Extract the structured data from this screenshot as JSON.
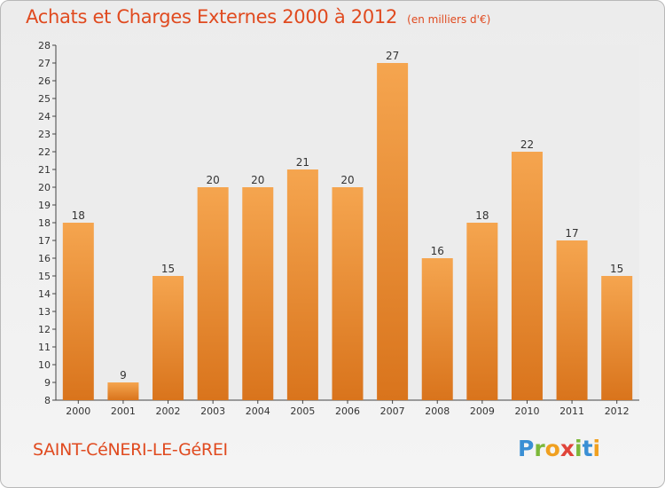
{
  "title": "Achats et Charges Externes 2000 à 2012",
  "unit": "(en milliers d'€)",
  "place": "SAINT-CéNERI-LE-GéREI",
  "logo": {
    "letters": [
      "P",
      "r",
      "o",
      "x",
      "i",
      "t",
      "i"
    ],
    "colors": [
      "#3a8fd4",
      "#7cb83a",
      "#f0a020",
      "#e0443a",
      "#7cb83a",
      "#3a8fd4",
      "#f0a020"
    ]
  },
  "colors": {
    "accent": "#e04a1f",
    "bar_light": "#f5a54f",
    "bar_dark": "#d9741c"
  },
  "chart_data": {
    "type": "bar",
    "title": "Achats et Charges Externes 2000 à 2012",
    "subtitle": "(en milliers d'€)",
    "categories": [
      "2000",
      "2001",
      "2002",
      "2003",
      "2004",
      "2005",
      "2006",
      "2007",
      "2008",
      "2009",
      "2010",
      "2011",
      "2012"
    ],
    "values": [
      18,
      9,
      15,
      20,
      20,
      21,
      20,
      27,
      16,
      18,
      22,
      17,
      15
    ],
    "yticks": [
      8,
      9,
      10,
      11,
      12,
      13,
      14,
      15,
      16,
      17,
      18,
      19,
      20,
      21,
      22,
      23,
      24,
      25,
      26,
      27,
      28
    ],
    "ylim": [
      8,
      28
    ],
    "xlabel": "",
    "ylabel": "",
    "grid": false,
    "data_labels": true
  }
}
